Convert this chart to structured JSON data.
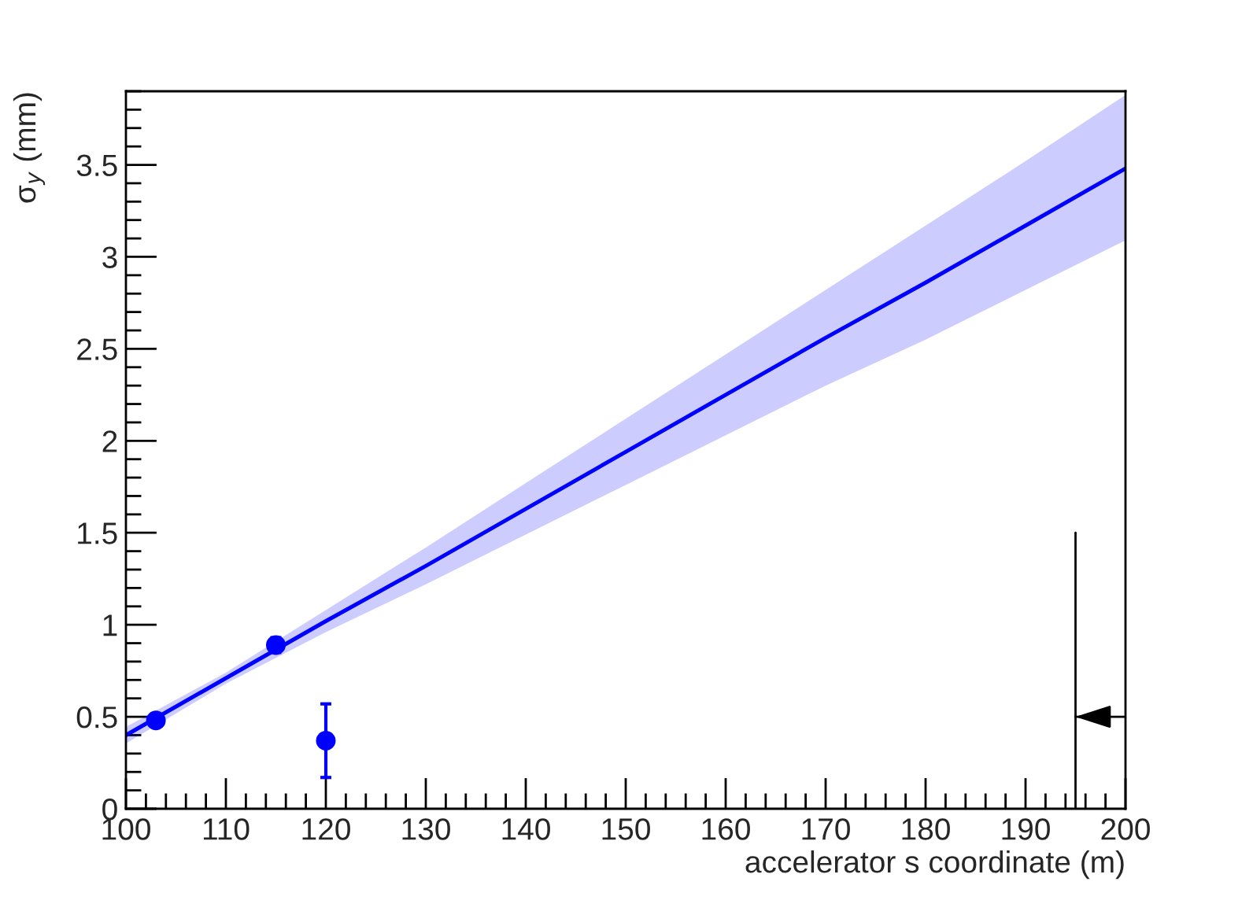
{
  "chart_data": {
    "type": "line",
    "xlabel": "accelerator s coordinate (m)",
    "ylabel": "σ$_{y}$ (mm)",
    "xlim": [
      100,
      200
    ],
    "xticks": [
      100,
      110,
      120,
      130,
      140,
      150,
      160,
      170,
      180,
      190,
      200
    ],
    "ylim": [
      0,
      3.9
    ],
    "yticks": [
      0,
      0.5,
      1,
      1.5,
      2,
      2.5,
      3,
      3.5
    ],
    "grid": false,
    "legend": false,
    "series": [
      {
        "color": "#0000ff",
        "x": [
          100,
          110,
          120,
          130,
          140,
          150,
          160,
          170,
          180,
          190,
          200
        ],
        "values": [
          0.4,
          0.71,
          1.02,
          1.32,
          1.63,
          1.94,
          2.25,
          2.56,
          2.86,
          3.17,
          3.48
        ],
        "lower": [
          0.355,
          0.68,
          0.96,
          1.22,
          1.49,
          1.76,
          2.03,
          2.3,
          2.55,
          2.82,
          3.09
        ],
        "upper": [
          0.445,
          0.74,
          1.08,
          1.42,
          1.77,
          2.12,
          2.47,
          2.82,
          3.17,
          3.52,
          3.88
        ]
      },
      {
        "type": "scatter",
        "marker": "circle",
        "color": "#0000ff",
        "x": [
          103,
          115,
          120
        ],
        "values": [
          0.48,
          0.89,
          0.37
        ],
        "errors": [
          0.03,
          0.04,
          0.2
        ]
      },
      {
        "color": "#000000",
        "x": [
          195,
          195
        ],
        "values": [
          0,
          1.5
        ]
      },
      {
        "color": "#000000",
        "x": [
          200,
          195
        ],
        "values": [
          0.5,
          0.5
        ]
      }
    ]
  }
}
